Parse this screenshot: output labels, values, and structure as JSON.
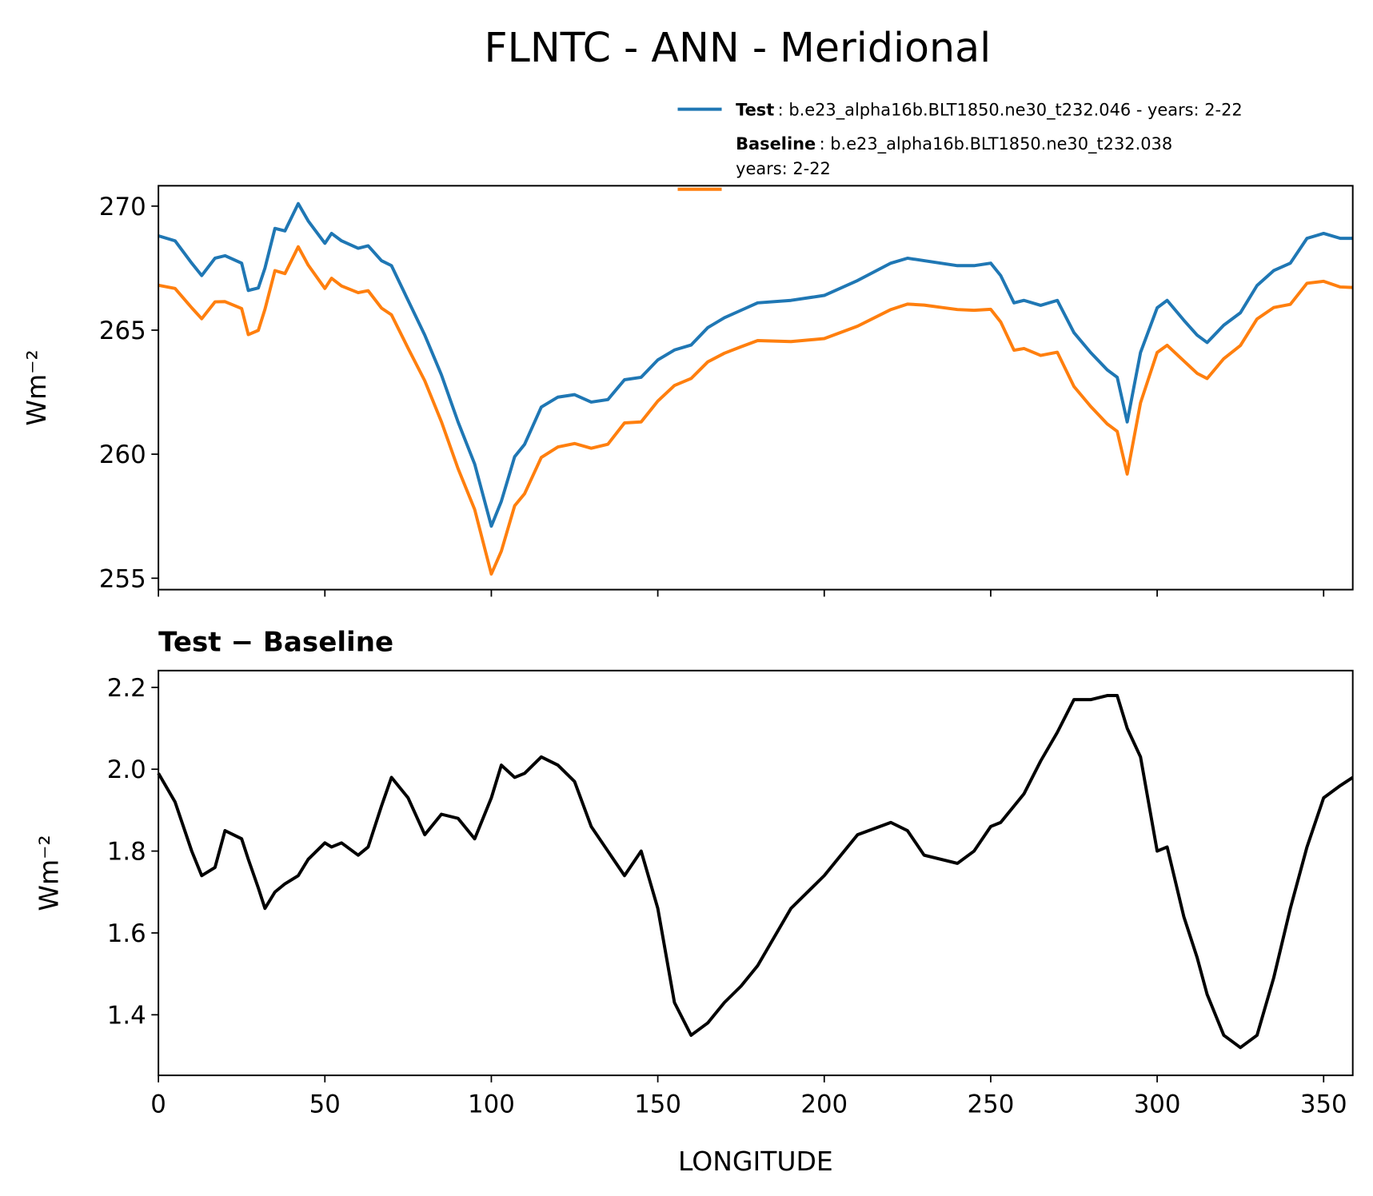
{
  "title": "FLNTC - ANN - Meridional",
  "chart_data": [
    {
      "type": "line",
      "ylabel": "Wm⁻²",
      "x": [
        0,
        5,
        10,
        13,
        17,
        20,
        25,
        27,
        30,
        32,
        35,
        38,
        42,
        45,
        50,
        52,
        55,
        60,
        63,
        67,
        70,
        75,
        80,
        85,
        90,
        95,
        100,
        103,
        107,
        110,
        115,
        120,
        125,
        130,
        135,
        140,
        145,
        150,
        155,
        160,
        165,
        170,
        175,
        180,
        190,
        200,
        210,
        220,
        225,
        230,
        235,
        240,
        245,
        250,
        253,
        257,
        260,
        265,
        270,
        275,
        280,
        285,
        288,
        291,
        295,
        300,
        303,
        308,
        312,
        315,
        320,
        325,
        330,
        335,
        340,
        345,
        350,
        355,
        358.75
      ],
      "series": [
        {
          "name": "Test",
          "label_lines": [
            ": b.e23_alpha16b.BLT1850.ne30_t232.046 - years: 2-22"
          ],
          "color": "#1f77b4",
          "values": [
            268.8,
            268.6,
            267.7,
            267.2,
            267.9,
            268.0,
            267.7,
            266.6,
            266.7,
            267.5,
            269.1,
            269.0,
            270.1,
            269.4,
            268.5,
            268.9,
            268.6,
            268.3,
            268.4,
            267.8,
            267.6,
            266.2,
            264.8,
            263.2,
            261.3,
            259.6,
            257.1,
            258.1,
            259.9,
            260.4,
            261.9,
            262.3,
            262.4,
            262.1,
            262.2,
            263.0,
            263.1,
            263.8,
            264.2,
            264.4,
            265.1,
            265.5,
            265.8,
            266.1,
            266.2,
            266.4,
            267.0,
            267.7,
            267.9,
            267.8,
            267.7,
            267.6,
            267.6,
            267.7,
            267.2,
            266.1,
            266.2,
            266.0,
            266.2,
            264.9,
            264.1,
            263.4,
            263.1,
            261.3,
            264.1,
            265.9,
            266.2,
            265.4,
            264.8,
            264.5,
            265.2,
            265.7,
            266.8,
            267.4,
            267.7,
            268.7,
            268.9,
            268.7,
            268.7
          ]
        },
        {
          "name": "Baseline",
          "label_lines": [
            ": b.e23_alpha16b.BLT1850.ne30_t232.038",
            "years: 2-22"
          ],
          "color": "#ff7f0e",
          "values": [
            266.81,
            266.68,
            265.9,
            265.46,
            266.14,
            266.15,
            265.87,
            264.82,
            264.99,
            265.84,
            267.4,
            267.28,
            268.36,
            267.62,
            266.68,
            267.09,
            266.78,
            266.51,
            266.59,
            265.89,
            265.62,
            264.27,
            262.96,
            261.31,
            259.42,
            257.77,
            255.17,
            256.09,
            257.92,
            258.41,
            259.87,
            260.29,
            260.43,
            260.24,
            260.4,
            261.26,
            261.3,
            262.14,
            262.77,
            263.05,
            263.72,
            264.07,
            264.33,
            264.58,
            264.54,
            264.66,
            265.16,
            265.83,
            266.05,
            266.01,
            265.92,
            265.83,
            265.8,
            265.84,
            265.33,
            264.19,
            264.26,
            263.98,
            264.11,
            262.73,
            261.93,
            261.22,
            260.92,
            259.2,
            262.07,
            264.1,
            264.39,
            263.76,
            263.26,
            263.05,
            263.85,
            264.38,
            265.45,
            265.91,
            266.04,
            266.89,
            266.97,
            266.74,
            266.72
          ]
        }
      ],
      "xlim": [
        0,
        358.75
      ],
      "xticks": [
        0,
        50,
        100,
        150,
        200,
        250,
        300,
        350
      ],
      "show_xtick_labels": false,
      "ylim": [
        254.54,
        270.82
      ],
      "yticks": [
        255,
        260,
        265,
        270
      ]
    },
    {
      "type": "line",
      "title": "Test − Baseline",
      "xlabel": "LONGITUDE",
      "ylabel": "Wm⁻²",
      "x": [
        0,
        5,
        10,
        13,
        17,
        20,
        25,
        27,
        30,
        32,
        35,
        38,
        42,
        45,
        50,
        52,
        55,
        60,
        63,
        67,
        70,
        75,
        80,
        85,
        90,
        95,
        100,
        103,
        107,
        110,
        115,
        120,
        125,
        130,
        135,
        140,
        145,
        150,
        155,
        160,
        165,
        170,
        175,
        180,
        190,
        200,
        210,
        220,
        225,
        230,
        235,
        240,
        245,
        250,
        253,
        257,
        260,
        265,
        270,
        275,
        280,
        285,
        288,
        291,
        295,
        300,
        303,
        308,
        312,
        315,
        320,
        325,
        330,
        335,
        340,
        345,
        350,
        355,
        358.75
      ],
      "series": [
        {
          "color": "#000000",
          "values": [
            1.99,
            1.92,
            1.8,
            1.74,
            1.76,
            1.85,
            1.83,
            1.78,
            1.71,
            1.66,
            1.7,
            1.72,
            1.74,
            1.78,
            1.82,
            1.81,
            1.82,
            1.79,
            1.81,
            1.91,
            1.98,
            1.93,
            1.84,
            1.89,
            1.88,
            1.83,
            1.93,
            2.01,
            1.98,
            1.99,
            2.03,
            2.01,
            1.97,
            1.86,
            1.8,
            1.74,
            1.8,
            1.66,
            1.43,
            1.35,
            1.38,
            1.43,
            1.47,
            1.52,
            1.66,
            1.74,
            1.84,
            1.87,
            1.85,
            1.79,
            1.78,
            1.77,
            1.8,
            1.86,
            1.87,
            1.91,
            1.94,
            2.02,
            2.09,
            2.17,
            2.17,
            2.18,
            2.18,
            2.1,
            2.03,
            1.8,
            1.81,
            1.64,
            1.54,
            1.45,
            1.35,
            1.32,
            1.35,
            1.49,
            1.66,
            1.81,
            1.93,
            1.96,
            1.98
          ]
        }
      ],
      "xlim": [
        0,
        358.75
      ],
      "xticks": [
        0,
        50,
        100,
        150,
        200,
        250,
        300,
        350
      ],
      "show_xtick_labels": true,
      "ylim": [
        1.252,
        2.241
      ],
      "yticks": [
        1.4,
        1.6,
        1.8,
        {
          "value": 2,
          "label": "2.0"
        },
        2.2
      ]
    }
  ]
}
